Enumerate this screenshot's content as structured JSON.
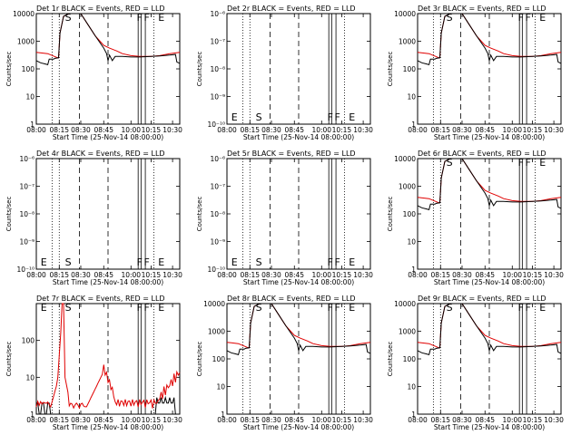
{
  "chart_data": [
    {
      "type": "line",
      "detector": "1r",
      "title": "Det 1r BLACK = Events, RED = LLD",
      "xlabel": "Start Time (25-Nov-14 08:00:00)",
      "ylabel": "Counts/sec",
      "yscale": "log",
      "ylim": [
        1,
        10000
      ],
      "yticks": [
        "1",
        "10",
        "100",
        "1000",
        "10000"
      ],
      "xlim": [
        "08:00",
        "10:40"
      ],
      "xticks": [
        "08:00",
        "08:15",
        "08:30",
        "08:45",
        "10:00",
        "10:15",
        "10:30"
      ],
      "markers": [
        "S",
        "F",
        "F",
        "E"
      ],
      "black": "high",
      "red": "high"
    },
    {
      "type": "line",
      "detector": "2r",
      "title": "Det 2r BLACK = Events, RED = LLD",
      "xlabel": "Start Time (25-Nov-14 08:00:00)",
      "ylabel": "Counts/sec",
      "yscale": "log",
      "ylim": [
        1e-06,
        1e-10
      ],
      "yticks": [
        "10⁻¹⁰",
        "10⁻⁹",
        "10⁻⁸",
        "10⁻⁷",
        "10⁻⁶"
      ],
      "xlim": [
        "08:00",
        "10:40"
      ],
      "xticks": [
        "08:00",
        "08:15",
        "08:30",
        "08:45",
        "10:00",
        "10:15",
        "10:30"
      ],
      "markers": [
        "E",
        "S",
        "F",
        "F",
        "E"
      ],
      "black": "none",
      "red": "none"
    },
    {
      "type": "line",
      "detector": "3r",
      "title": "Det 3r BLACK = Events, RED = LLD",
      "xlabel": "Start Time (25-Nov-14 08:00:00)",
      "ylabel": "Counts/sec",
      "yscale": "log",
      "ylim": [
        1,
        10000
      ],
      "yticks": [
        "1",
        "10",
        "100",
        "1000",
        "10000"
      ],
      "xlim": [
        "08:00",
        "10:40"
      ],
      "xticks": [
        "08:00",
        "08:15",
        "08:30",
        "08:45",
        "10:00",
        "10:15",
        "10:30"
      ],
      "markers": [
        "S",
        "F",
        "F",
        "E"
      ],
      "black": "high",
      "red": "high"
    },
    {
      "type": "line",
      "detector": "4r",
      "title": "Det 4r BLACK = Events, RED = LLD",
      "xlabel": "Start Time (25-Nov-14 08:00:00)",
      "ylabel": "Counts/sec",
      "yscale": "log",
      "ylim": [
        1e-06,
        1e-10
      ],
      "yticks": [
        "10⁻¹⁰",
        "10⁻⁹",
        "10⁻⁸",
        "10⁻⁷",
        "10⁻⁶"
      ],
      "xlim": [
        "08:00",
        "10:40"
      ],
      "xticks": [
        "08:00",
        "08:15",
        "08:30",
        "08:45",
        "10:00",
        "10:15",
        "10:30"
      ],
      "markers": [
        "E",
        "S",
        "F",
        "F",
        "E"
      ],
      "black": "none",
      "red": "none"
    },
    {
      "type": "line",
      "detector": "5r",
      "title": "Det 5r BLACK = Events, RED = LLD",
      "xlabel": "Start Time (25-Nov-14 08:00:00)",
      "ylabel": "Counts/sec",
      "yscale": "log",
      "ylim": [
        1e-06,
        1e-10
      ],
      "yticks": [
        "10⁻¹⁰",
        "10⁻⁹",
        "10⁻⁸",
        "10⁻⁷",
        "10⁻⁶"
      ],
      "xlim": [
        "08:00",
        "10:40"
      ],
      "xticks": [
        "08:00",
        "08:15",
        "08:30",
        "08:45",
        "10:00",
        "10:15",
        "10:30"
      ],
      "markers": [
        "E",
        "S",
        "F",
        "F",
        "E"
      ],
      "black": "none",
      "red": "none"
    },
    {
      "type": "line",
      "detector": "6r",
      "title": "Det 6r BLACK = Events, RED = LLD",
      "xlabel": "Start Time (25-Nov-14 08:00:00)",
      "ylabel": "Counts/sec",
      "yscale": "log",
      "ylim": [
        1,
        10000
      ],
      "yticks": [
        "1",
        "10",
        "100",
        "1000",
        "10000"
      ],
      "xlim": [
        "08:00",
        "10:40"
      ],
      "xticks": [
        "08:00",
        "08:15",
        "08:30",
        "08:45",
        "10:00",
        "10:15",
        "10:30"
      ],
      "markers": [
        "S",
        "F",
        "F",
        "E"
      ],
      "black": "high",
      "red": "high"
    },
    {
      "type": "line",
      "detector": "7r",
      "title": "Det 7r BLACK = Events, RED = LLD",
      "xlabel": "Start Time (25-Nov-14 08:00:00)",
      "ylabel": "Counts/sec",
      "yscale": "log",
      "ylim": [
        1,
        1000
      ],
      "yticks": [
        "1",
        "10",
        "100"
      ],
      "xlim": [
        "08:00",
        "10:40"
      ],
      "xticks": [
        "08:00",
        "08:15",
        "08:30",
        "08:45",
        "10:00",
        "10:15",
        "10:30"
      ],
      "markers": [
        "E",
        "S",
        "F",
        "F",
        "E"
      ],
      "black": "low",
      "red": "low"
    },
    {
      "type": "line",
      "detector": "8r",
      "title": "Det 8r BLACK = Events, RED = LLD",
      "xlabel": "Start Time (25-Nov-14 08:00:00)",
      "ylabel": "Counts/sec",
      "yscale": "log",
      "ylim": [
        1,
        10000
      ],
      "yticks": [
        "1",
        "10",
        "100",
        "1000",
        "10000"
      ],
      "xlim": [
        "08:00",
        "10:40"
      ],
      "xticks": [
        "08:00",
        "08:15",
        "08:30",
        "08:45",
        "10:00",
        "10:15",
        "10:30"
      ],
      "markers": [
        "S",
        "F",
        "F",
        "E"
      ],
      "black": "high",
      "red": "high"
    },
    {
      "type": "line",
      "detector": "9r",
      "title": "Det 9r BLACK = Events, RED = LLD",
      "xlabel": "Start Time (25-Nov-14 08:00:00)",
      "ylabel": "Counts/sec",
      "yscale": "log",
      "ylim": [
        1,
        10000
      ],
      "yticks": [
        "1",
        "10",
        "100",
        "1000",
        "10000"
      ],
      "xlim": [
        "08:00",
        "10:40"
      ],
      "xticks": [
        "08:00",
        "08:15",
        "08:30",
        "08:45",
        "10:00",
        "10:15",
        "10:30"
      ],
      "markers": [
        "S",
        "F",
        "F",
        "E"
      ],
      "black": "high",
      "red": "high"
    }
  ],
  "colors": {
    "events": "#000000",
    "lld": "#e00000"
  }
}
